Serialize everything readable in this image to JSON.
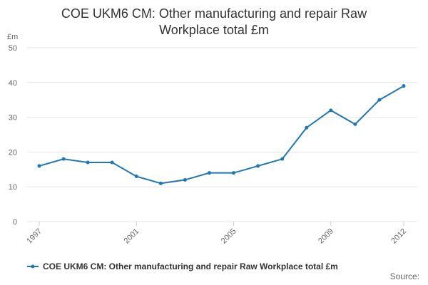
{
  "chart_data": {
    "type": "line",
    "title": "COE UKM6 CM: Other manufacturing and repair Raw Workplace total £m",
    "y_label": "£m",
    "x": [
      1997,
      1998,
      1999,
      2000,
      2001,
      2002,
      2003,
      2004,
      2005,
      2006,
      2007,
      2008,
      2009,
      2010,
      2011,
      2012
    ],
    "xlim": [
      1997,
      2012
    ],
    "xticks": [
      1997,
      2001,
      2005,
      2009,
      2012
    ],
    "ylim": [
      0,
      50
    ],
    "yticks": [
      0,
      10,
      20,
      30,
      40,
      50
    ],
    "grid": true,
    "legend": "bottom",
    "source": "Source:",
    "series": [
      {
        "name": "COE UKM6 CM: Other manufacturing and repair Raw Workplace total £m",
        "color": "#1f78b4",
        "values": [
          16,
          18,
          17,
          17,
          13,
          11,
          12,
          14,
          14,
          16,
          18,
          27,
          32,
          28,
          35,
          39
        ]
      }
    ]
  }
}
